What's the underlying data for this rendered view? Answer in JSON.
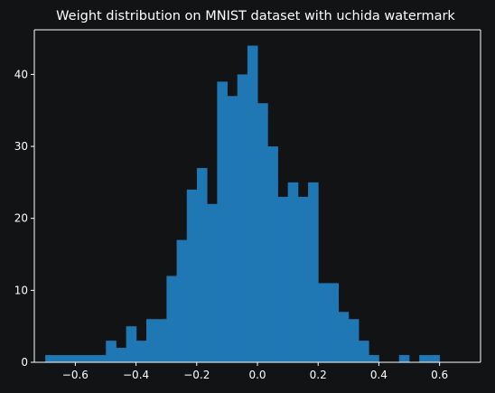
{
  "chart_data": {
    "type": "bar",
    "title": "Weight distribution on MNIST dataset with uchida watermark",
    "xlabel": "",
    "ylabel": "",
    "xlim": [
      -0.735,
      0.735
    ],
    "ylim": [
      0,
      46.2
    ],
    "x_ticks": [
      -0.6,
      -0.4,
      -0.2,
      0.0,
      0.2,
      0.4,
      0.6
    ],
    "x_tick_labels": [
      "−0.6",
      "−0.4",
      "−0.2",
      "0.0",
      "0.2",
      "0.4",
      "0.6"
    ],
    "y_ticks": [
      0,
      10,
      20,
      30,
      40
    ],
    "y_tick_labels": [
      "0",
      "10",
      "20",
      "30",
      "40"
    ],
    "bin_start": -0.699,
    "bin_width": 0.0333,
    "values": [
      1,
      1,
      1,
      1,
      1,
      1,
      3,
      2,
      5,
      3,
      6,
      6,
      12,
      17,
      24,
      27,
      22,
      39,
      37,
      40,
      44,
      36,
      30,
      23,
      25,
      23,
      25,
      11,
      11,
      7,
      6,
      3,
      1,
      0,
      0,
      1,
      0,
      1,
      1
    ],
    "bar_color": "#1f77b4",
    "grid": false,
    "legend": "none"
  }
}
